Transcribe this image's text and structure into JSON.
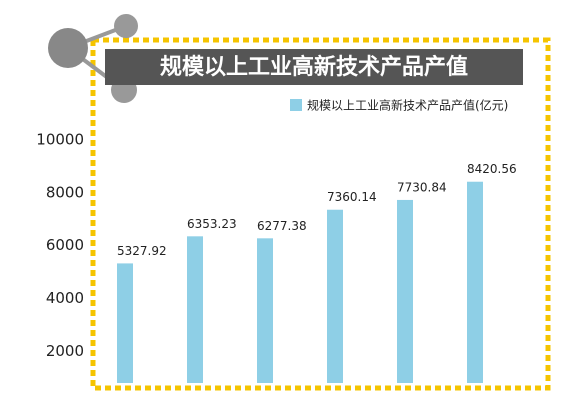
{
  "chart_data": {
    "type": "bar",
    "title": "规模以上工业高新技术产品产值",
    "categories": [
      null,
      null,
      null,
      null,
      null,
      null
    ],
    "series": [
      {
        "name": "规模以上工业高新技术产品产值(亿元)",
        "color": "#8ecfe6",
        "values": [
          5327.92,
          6353.23,
          6277.38,
          7360.14,
          7730.84,
          8420.56
        ]
      }
    ],
    "ylim": [
      800,
      10000
    ],
    "yticks": [
      2000,
      4000,
      6000,
      8000,
      10000
    ]
  }
}
